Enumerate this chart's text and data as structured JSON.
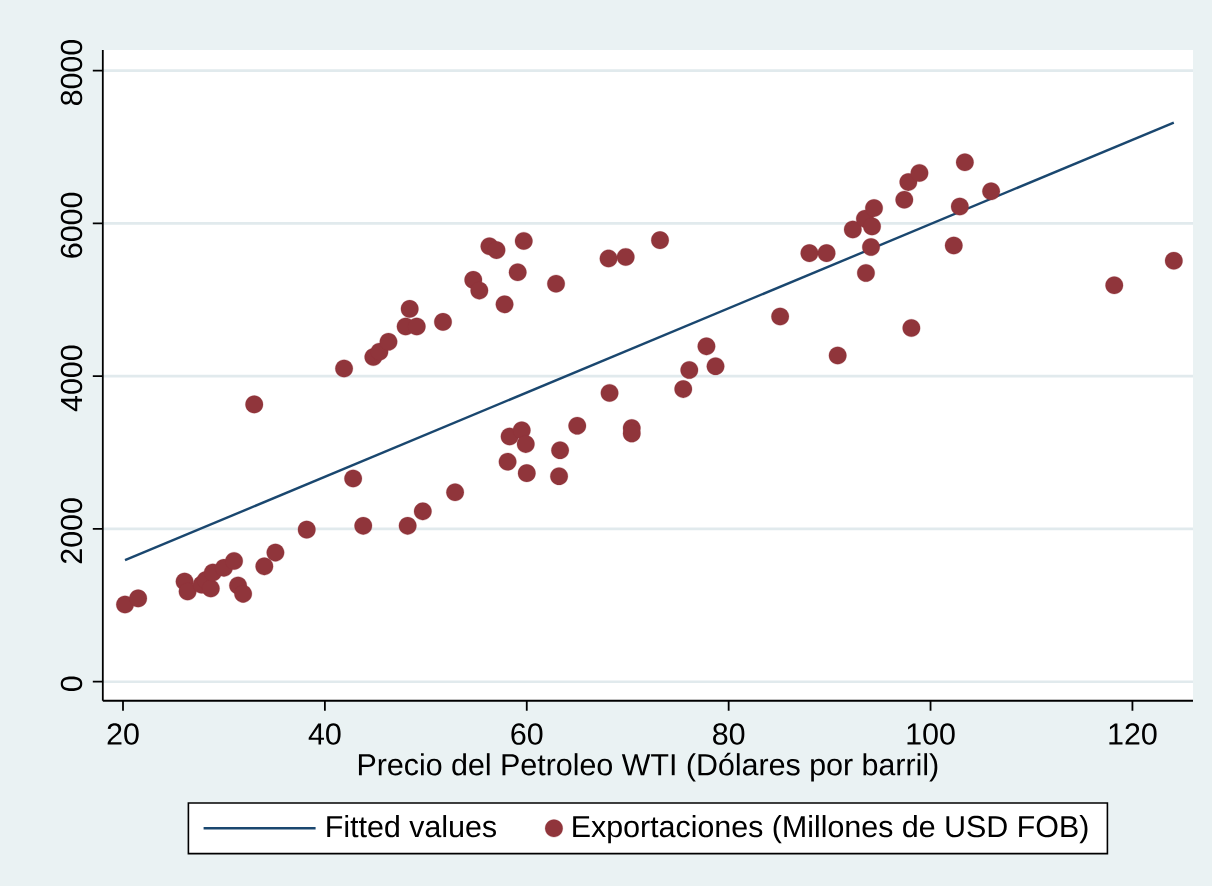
{
  "chart_data": {
    "type": "scatter",
    "xlabel": "Precio del Petroleo WTI (Dólares por barril)",
    "xlim": [
      18,
      126
    ],
    "ylim": [
      -250,
      8270
    ],
    "xticks": [
      20,
      40,
      60,
      80,
      100,
      120
    ],
    "yticks": [
      0,
      2000,
      4000,
      6000,
      8000
    ],
    "grid": "y",
    "legend": "bottom",
    "marker": "circle",
    "series": [
      {
        "name": "Fitted values",
        "type": "line",
        "marker": "none",
        "color": "#1a476f",
        "x": [
          20.2,
          124.1
        ],
        "values": [
          1590,
          7320
        ]
      },
      {
        "name": "Exportaciones (Millones de USD FOB)",
        "color": "#90353b",
        "x": [
          20.2,
          21.5,
          26.1,
          26.4,
          27.8,
          28.2,
          28.7,
          28.9,
          30.0,
          31.0,
          31.4,
          31.9,
          33.0,
          34.0,
          35.1,
          38.2,
          41.9,
          42.8,
          43.8,
          44.8,
          45.4,
          46.3,
          48.2,
          48.0,
          49.1,
          48.4,
          49.7,
          51.7,
          52.9,
          54.7,
          55.3,
          56.3,
          57.0,
          57.8,
          59.1,
          59.7,
          58.3,
          59.5,
          59.9,
          58.1,
          60.0,
          62.9,
          63.2,
          63.3,
          65.0,
          68.1,
          69.8,
          68.2,
          70.4,
          70.4,
          73.2,
          75.5,
          76.1,
          77.8,
          78.7,
          85.1,
          88.0,
          89.7,
          90.8,
          92.3,
          93.5,
          94.4,
          94.2,
          94.1,
          93.6,
          97.4,
          97.8,
          98.9,
          98.1,
          103.4,
          102.9,
          102.3,
          106.0,
          118.2,
          124.1
        ],
        "values": [
          1010,
          1090,
          1310,
          1180,
          1270,
          1330,
          1220,
          1430,
          1490,
          1580,
          1260,
          1150,
          3630,
          1510,
          1690,
          1990,
          4100,
          2660,
          2040,
          4250,
          4320,
          4450,
          2040,
          4650,
          4650,
          4880,
          2230,
          4710,
          2480,
          5260,
          5120,
          5700,
          5650,
          4940,
          5360,
          5770,
          3210,
          3290,
          3110,
          2880,
          2730,
          5210,
          2690,
          3030,
          3350,
          5540,
          5560,
          3780,
          3320,
          3250,
          5780,
          3830,
          4080,
          4390,
          4130,
          4780,
          5610,
          5610,
          4270,
          5920,
          6060,
          6200,
          5960,
          5690,
          5350,
          6310,
          6540,
          6660,
          4630,
          6800,
          6220,
          5710,
          6420,
          5190,
          5510
        ]
      }
    ]
  }
}
